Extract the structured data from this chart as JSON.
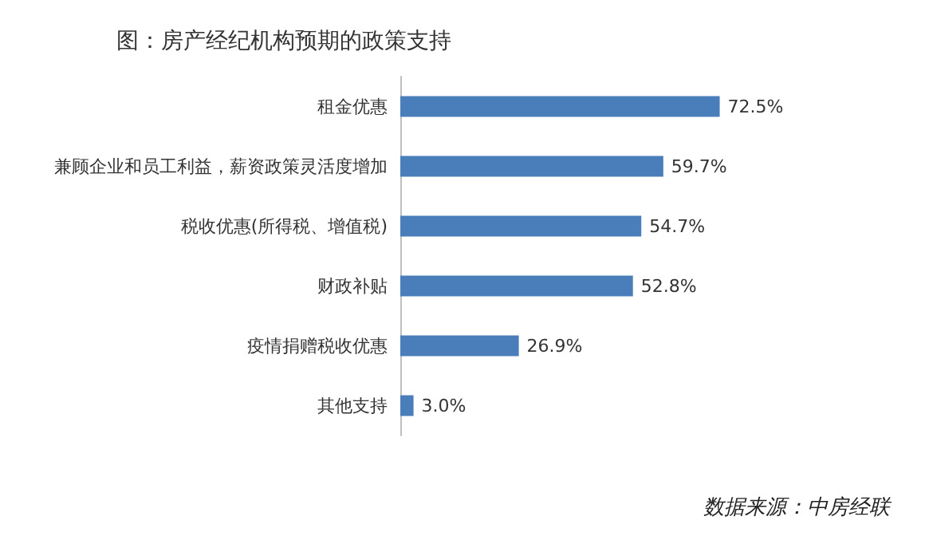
{
  "chart_data": {
    "type": "bar",
    "orientation": "horizontal",
    "title": "图：房产经纪机构预期的政策支持",
    "categories": [
      "租金优惠",
      "兼顾企业和员工利益，薪资政策灵活度增加",
      "税收优惠(所得税、增值税)",
      "财政补贴",
      "疫情捐赠税收优惠",
      "其他支持"
    ],
    "values": [
      72.5,
      59.7,
      54.7,
      52.8,
      26.9,
      3.0
    ],
    "value_labels": [
      "72.5%",
      "59.7%",
      "54.7%",
      "52.8%",
      "26.9%",
      "3.0%"
    ],
    "color": "#4a7ebb",
    "annotations": [
      "数据来源：中房经联"
    ]
  }
}
